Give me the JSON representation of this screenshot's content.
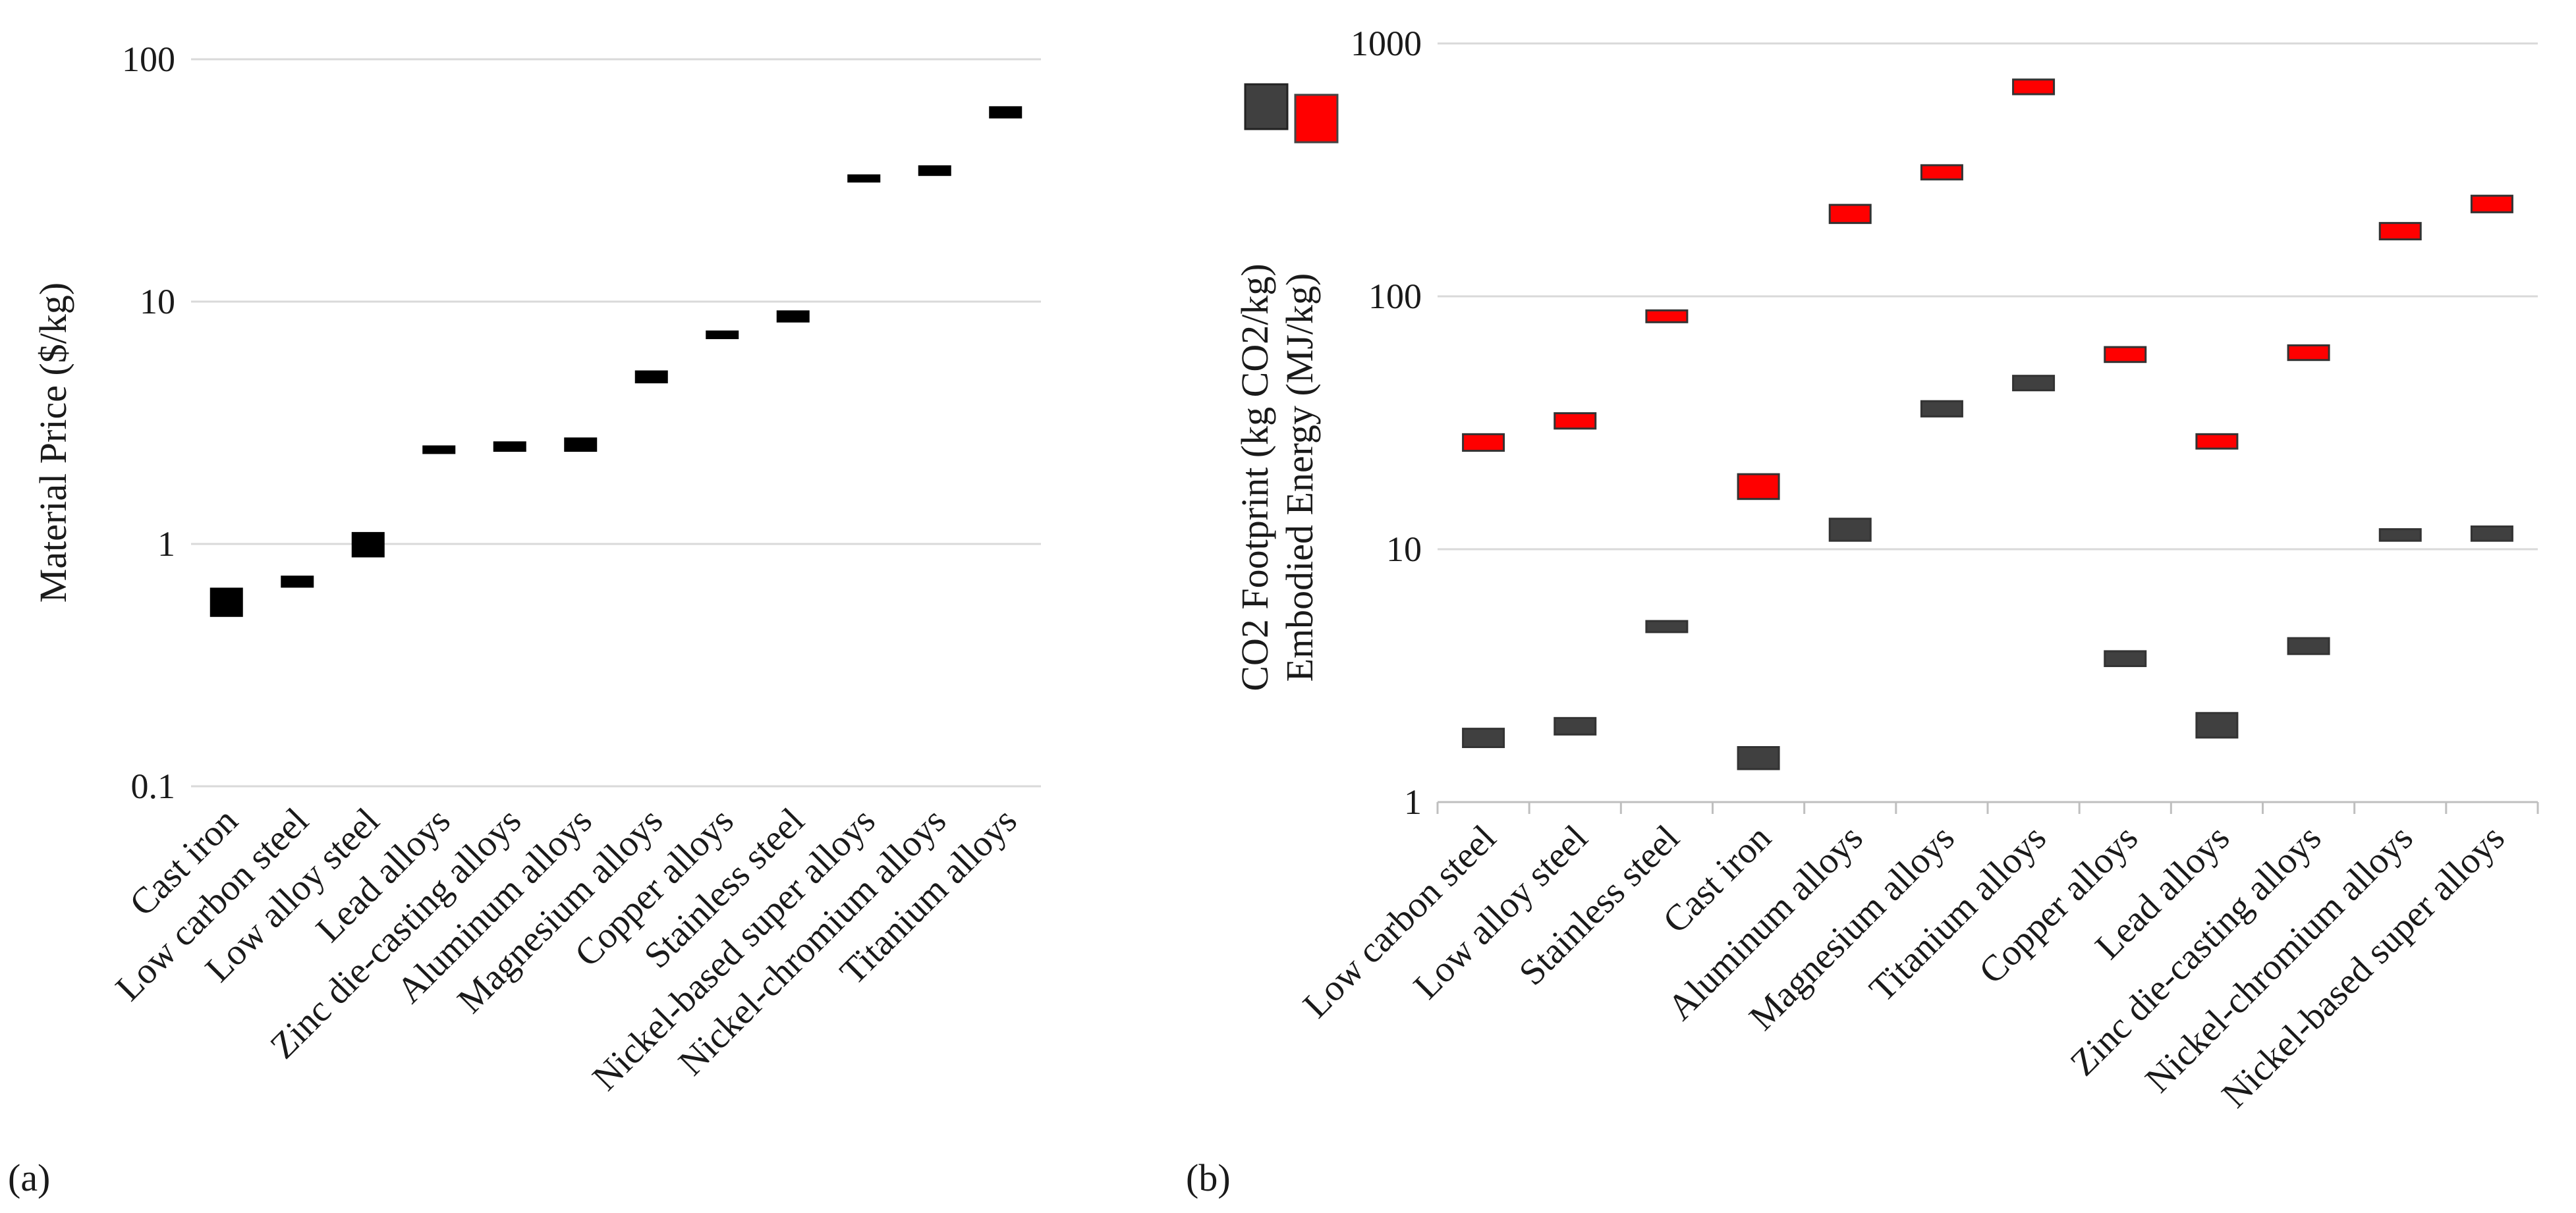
{
  "chart_data": [
    {
      "type": "range-bar",
      "panel_label": "(a)",
      "ylabel": "Material Price ($/kg)",
      "yscale": "log",
      "ylim": [
        0.1,
        100
      ],
      "yticks": [
        "0.1",
        "1",
        "10",
        "100"
      ],
      "grid": true,
      "categories": [
        "Cast iron",
        "Low carbon steel",
        "Low alloy steel",
        "Lead alloys",
        "Zinc die-casting alloys",
        "Aluminum alloys",
        "Magnesium alloys",
        "Copper alloys",
        "Stainless steel",
        "Nickel-based super alloys",
        "Nickel-chromium alloys",
        "Titanium alloys"
      ],
      "series": [
        {
          "color": "#000000",
          "low": [
            0.5,
            0.66,
            0.88,
            2.35,
            2.4,
            2.4,
            4.6,
            7.0,
            8.2,
            31.0,
            33.0,
            57.0
          ],
          "high": [
            0.66,
            0.74,
            1.12,
            2.55,
            2.65,
            2.75,
            5.2,
            7.6,
            9.2,
            33.5,
            36.5,
            64.0
          ]
        }
      ]
    },
    {
      "type": "range-bar",
      "panel_label": "(b)",
      "ylabel_lines": [
        "CO2 Footprint  (kg CO2/kg)",
        "Embodied Energy (MJ/kg)"
      ],
      "yscale": "log",
      "ylim": [
        1,
        1000
      ],
      "yticks": [
        "1",
        "10",
        "100",
        "1000"
      ],
      "grid": true,
      "categories": [
        "Low carbon steel",
        "Low alloy steel",
        "Stainless steel",
        "Cast iron",
        "Aluminum alloys",
        "Magnesium alloys",
        "Titanium alloys",
        "Copper alloys",
        "Lead alloys",
        "Zinc die-casting alloys",
        "Nickel-chromium alloys",
        "Nickel-based super alloys"
      ],
      "series": [
        {
          "key": "co2",
          "color": "#404040",
          "low": [
            1.65,
            1.85,
            4.7,
            1.35,
            10.8,
            33.5,
            42.5,
            3.45,
            1.8,
            3.85,
            10.8,
            10.8
          ],
          "high": [
            1.95,
            2.15,
            5.2,
            1.65,
            13.2,
            38.5,
            48.5,
            3.95,
            2.25,
            4.45,
            12.0,
            12.3
          ]
        },
        {
          "key": "energy",
          "color": "#ff0000",
          "low": [
            24.5,
            30.0,
            79.0,
            15.8,
            195.0,
            290.0,
            630.0,
            55.0,
            25.0,
            56.0,
            168.0,
            215.0
          ],
          "high": [
            28.5,
            34.5,
            88.0,
            19.8,
            230.0,
            330.0,
            720.0,
            63.0,
            28.5,
            64.0,
            195.0,
            250.0
          ]
        }
      ]
    }
  ]
}
